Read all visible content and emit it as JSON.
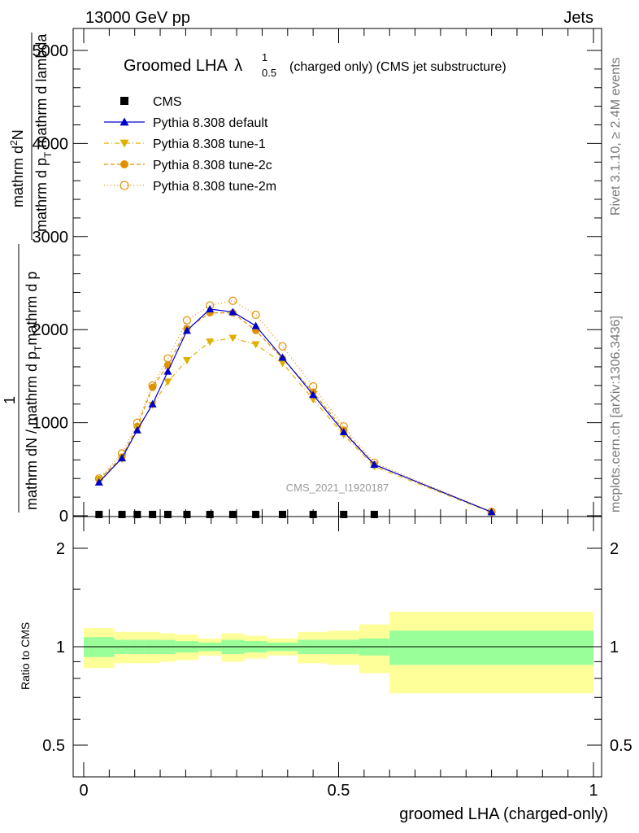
{
  "header": {
    "left": "13000 GeV pp",
    "right": "Jets"
  },
  "side_text": {
    "rivet": "Rivet 3.1.10, ≥ 2.4M events",
    "mcplots": "mcplots.cern.ch [arXiv:1306.3436]"
  },
  "chart_data": {
    "type": "line",
    "title": "Groomed LHA",
    "title_symbol": "λ",
    "title_sup": "1",
    "title_sub": "0.5",
    "title_suffix": "(charged only) (CMS jet substructure)",
    "ylabel_line1": "mathrm d",
    "ylabel_line1_sup": "2",
    "ylabel_line1_rest": "N",
    "ylabel_line2": "mathrm d p",
    "ylabel_line2_sub": "T",
    "ylabel_line2_rest": " mathrm d lambda",
    "ylabel_prefix": "1",
    "ylabel_denom": "mathrm dN / mathrm d p",
    "ylabel_denom_sub": "T",
    "ylabel_denom_rest": "mathrm d p",
    "xlabel": "groomed LHA (charged-only)",
    "ratio_ylabel": "Ratio to CMS",
    "analysis_tag": "CMS_2021_I1920187",
    "xlim": [
      0,
      1
    ],
    "ylim": [
      0,
      5200
    ],
    "y_ticks": [
      "0",
      "1000",
      "2000",
      "3000",
      "4000",
      "5000"
    ],
    "x_ticks": [
      "0",
      "0.5",
      "1"
    ],
    "ratio_ticks": [
      "0.5",
      "1",
      "2"
    ],
    "legend_position": "top-left",
    "bins": [
      [
        0.0,
        0.06
      ],
      [
        0.06,
        0.09
      ],
      [
        0.09,
        0.12
      ],
      [
        0.12,
        0.15
      ],
      [
        0.15,
        0.18
      ],
      [
        0.18,
        0.225
      ],
      [
        0.225,
        0.27
      ],
      [
        0.27,
        0.315
      ],
      [
        0.315,
        0.36
      ],
      [
        0.36,
        0.42
      ],
      [
        0.42,
        0.48
      ],
      [
        0.48,
        0.54
      ],
      [
        0.54,
        0.6
      ],
      [
        0.6,
        1.0
      ]
    ],
    "x": [
      0.03,
      0.075,
      0.105,
      0.135,
      0.165,
      0.2025,
      0.2475,
      0.2925,
      0.3375,
      0.39,
      0.45,
      0.51,
      0.57,
      0.8
    ],
    "cms": [
      5,
      5,
      5,
      5,
      5,
      5,
      5,
      5,
      5,
      5,
      5,
      5,
      5,
      null
    ],
    "series": [
      {
        "name": "Pythia 8.308 default",
        "color": "#0000cc",
        "marker": "triangle-up",
        "dash": "",
        "values": [
          360,
          620,
          920,
          1200,
          1550,
          1990,
          2220,
          2190,
          2040,
          1700,
          1300,
          900,
          550,
          40
        ]
      },
      {
        "name": "Pythia 8.308 tune-1",
        "color": "#e0b000",
        "marker": "triangle-down",
        "dash": "6,3,1,3",
        "values": [
          380,
          610,
          940,
          1190,
          1440,
          1670,
          1870,
          1910,
          1840,
          1640,
          1250,
          870,
          530,
          35
        ]
      },
      {
        "name": "Pythia 8.308 tune-2c",
        "color": "#e09000",
        "marker": "circle-filled",
        "dash": "5,3",
        "values": [
          390,
          630,
          960,
          1380,
          1620,
          2010,
          2180,
          2180,
          1990,
          1690,
          1330,
          920,
          550,
          40
        ]
      },
      {
        "name": "Pythia 8.308 tune-2m",
        "color": "#e09000",
        "marker": "circle-open",
        "dash": "1,3",
        "values": [
          400,
          670,
          1000,
          1400,
          1690,
          2100,
          2260,
          2310,
          2160,
          1820,
          1390,
          960,
          570,
          42
        ]
      }
    ],
    "cms_label": "CMS",
    "ratio_band_inner": [
      0.07,
      0.05,
      0.05,
      0.05,
      0.05,
      0.04,
      0.03,
      0.05,
      0.04,
      0.03,
      0.05,
      0.05,
      0.06,
      0.12
    ],
    "ratio_band_outer": [
      0.14,
      0.11,
      0.11,
      0.11,
      0.1,
      0.09,
      0.06,
      0.1,
      0.08,
      0.06,
      0.11,
      0.12,
      0.17,
      0.28
    ]
  }
}
